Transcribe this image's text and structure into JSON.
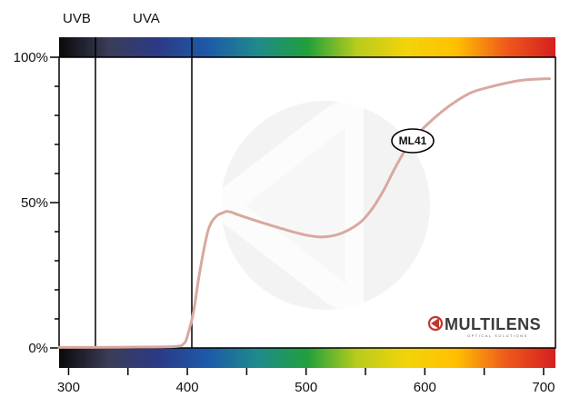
{
  "chart_data": {
    "type": "line",
    "title": "",
    "xlabel": "",
    "ylabel": "",
    "xlim": [
      292,
      710
    ],
    "ylim": [
      0,
      100
    ],
    "x_ticks": [
      300,
      400,
      500,
      600,
      700
    ],
    "y_ticks": [
      {
        "value": 0,
        "label": "0%"
      },
      {
        "value": 50,
        "label": "50%"
      },
      {
        "value": 100,
        "label": "100%"
      }
    ],
    "bands": [
      {
        "label": "UVB",
        "end": 320
      },
      {
        "label": "UVA",
        "end": 400
      }
    ],
    "series": [
      {
        "name": "ML41",
        "color": "#d9a8a0",
        "x": [
          292,
          320,
          360,
          390,
          397,
          400,
          405,
          410,
          416,
          420,
          425,
          430,
          433,
          437,
          445,
          460,
          480,
          500,
          515,
          530,
          545,
          555,
          565,
          575,
          585,
          595,
          605,
          615,
          625,
          640,
          660,
          680,
          700,
          705
        ],
        "y": [
          0.2,
          0.2,
          0.3,
          0.5,
          1.5,
          4,
          12,
          25,
          38,
          43,
          45.5,
          46.5,
          47,
          46.7,
          45.5,
          43.5,
          41,
          38.8,
          38.2,
          39.5,
          43,
          47.5,
          54,
          62,
          69,
          74,
          78,
          81.5,
          84.5,
          88,
          90.3,
          92,
          92.6,
          92.6
        ]
      }
    ],
    "annotations": [
      {
        "text": "ML41"
      }
    ],
    "grid": false,
    "legend": "none"
  },
  "logo": {
    "name": "MULTILENS",
    "tagline": "OPTICAL SOLUTIONS",
    "brand_color": "#c0392b"
  },
  "colors": {
    "spectrum": [
      "#0a0a0a",
      "#3a3c58",
      "#2c3a86",
      "#1d5aa8",
      "#1f8a8c",
      "#20a03c",
      "#b8cc1c",
      "#f3d40a",
      "#ffc000",
      "#ef5a1c",
      "#d51f1f"
    ]
  }
}
